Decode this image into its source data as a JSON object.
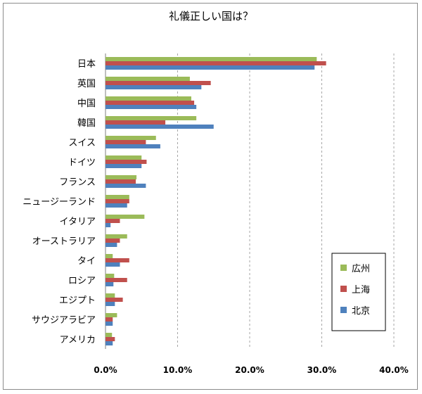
{
  "chart_data": {
    "type": "bar",
    "orientation": "horizontal",
    "title": "礼儀正しい国は？",
    "categories": [
      "日本",
      "英国",
      "中国",
      "韓国",
      "スイス",
      "ドイツ",
      "フランス",
      "ニュージーランド",
      "イタリア",
      "オーストラリア",
      "タイ",
      "ロシア",
      "エジプト",
      "サウジアラビア",
      "アメリカ"
    ],
    "series": [
      {
        "name": "広州",
        "color": "#9bbb59",
        "values": [
          29.3,
          11.7,
          11.9,
          12.6,
          7.0,
          5.0,
          4.3,
          3.3,
          5.4,
          3.0,
          1.0,
          1.2,
          1.3,
          1.6,
          0.9
        ]
      },
      {
        "name": "上海",
        "color": "#c0504d",
        "values": [
          30.6,
          14.6,
          12.3,
          8.3,
          5.6,
          5.7,
          4.2,
          3.3,
          2.0,
          2.0,
          3.3,
          3.0,
          2.4,
          1.0,
          1.3
        ]
      },
      {
        "name": "北京",
        "color": "#4f81bd",
        "values": [
          29.0,
          13.3,
          12.6,
          15.0,
          7.6,
          5.0,
          5.6,
          3.0,
          0.7,
          1.6,
          2.0,
          1.1,
          1.3,
          1.0,
          1.0
        ]
      }
    ],
    "xlim": [
      0,
      40
    ],
    "xticks": [
      "0.0%",
      "10.0%",
      "20.0%",
      "30.0%",
      "40.0%"
    ],
    "grid": "vertical-dashed",
    "legend_position": "bottom-right"
  }
}
